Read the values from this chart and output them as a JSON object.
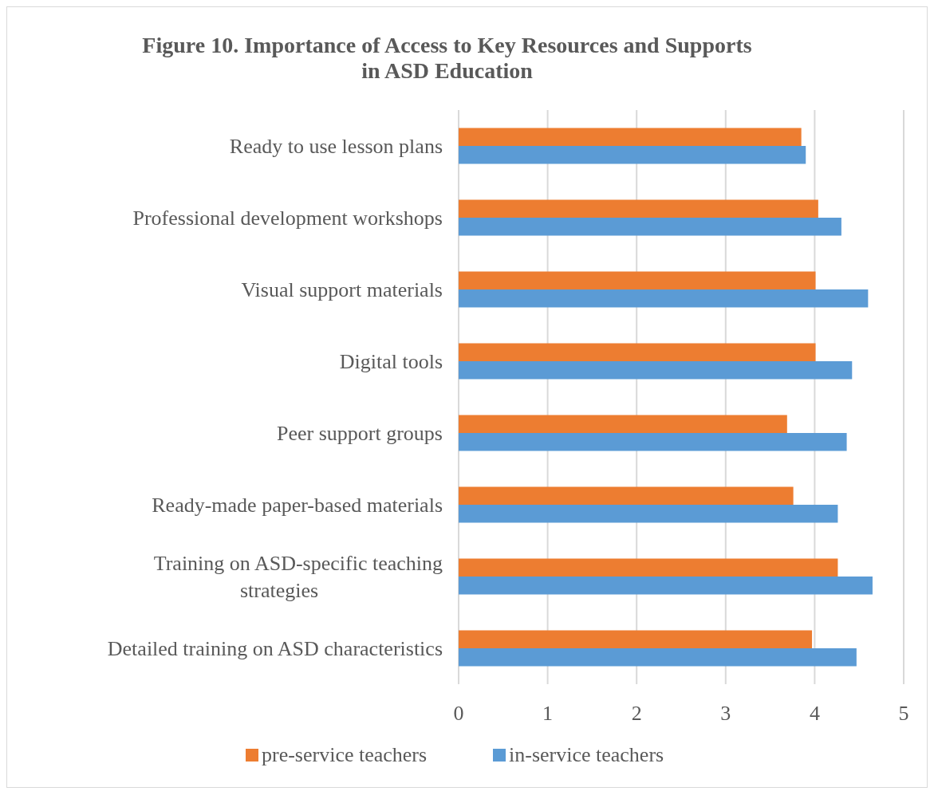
{
  "chart_data": {
    "type": "bar",
    "orientation": "horizontal",
    "title": "Figure 10. Importance of Access to Key Resources and Supports in ASD Education",
    "categories": [
      "Ready to use lesson plans",
      "Professional development workshops",
      "Visual support materials",
      "Digital tools",
      "Peer support groups",
      "Ready-made paper-based materials",
      "Training on ASD-specific teaching strategies",
      "Detailed training on ASD characteristics"
    ],
    "series": [
      {
        "name": "pre-service teachers",
        "color": "#ed7d31",
        "values": [
          3.85,
          4.04,
          4.01,
          4.01,
          3.69,
          3.76,
          4.26,
          3.97
        ]
      },
      {
        "name": "in-service teachers",
        "color": "#5b9bd5",
        "values": [
          3.9,
          4.3,
          4.6,
          4.42,
          4.36,
          4.26,
          4.65,
          4.47
        ]
      }
    ],
    "xlim": [
      0,
      5
    ],
    "xticks": [
      0,
      1,
      2,
      3,
      4,
      5
    ],
    "grid": "x",
    "legend": "bottom"
  }
}
